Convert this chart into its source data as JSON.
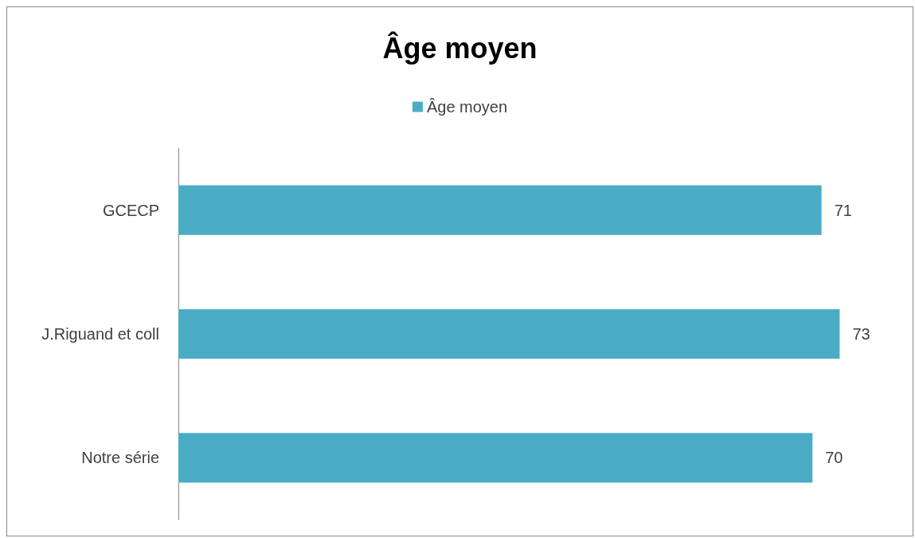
{
  "chart_data": {
    "type": "bar",
    "orientation": "horizontal",
    "title": "Âge moyen",
    "categories": [
      "GCECP",
      "J.Riguand et coll",
      "Notre série"
    ],
    "series": [
      {
        "name": "Âge moyen",
        "color": "#4bacc6",
        "values": [
          71,
          73,
          70
        ]
      }
    ],
    "data_labels": true,
    "legend": "top",
    "grid": false,
    "tick_labels": "y"
  }
}
